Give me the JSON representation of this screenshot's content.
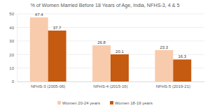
{
  "chart_data": {
    "type": "bar",
    "title": "% of Women Married Before 18 Years of Age, India, NFHS-3, 4 & 5",
    "categories": [
      "NFHS-3 (2005-06)",
      "NFHS-4 (2015-16)",
      "NFHS-5 (2019-21)"
    ],
    "series": [
      {
        "name": "Women 20-24 years",
        "color": "#f8cbad",
        "values": [
          47.4,
          26.8,
          23.3
        ]
      },
      {
        "name": "Women 18-19 years",
        "color": "#c55a11",
        "values": [
          37.7,
          20.1,
          16.3
        ]
      }
    ],
    "ylim": [
      0,
      50
    ],
    "yticks": [
      0,
      10,
      20,
      30,
      40,
      50
    ],
    "grid": true,
    "legend": "bottom",
    "data_labels": true
  }
}
